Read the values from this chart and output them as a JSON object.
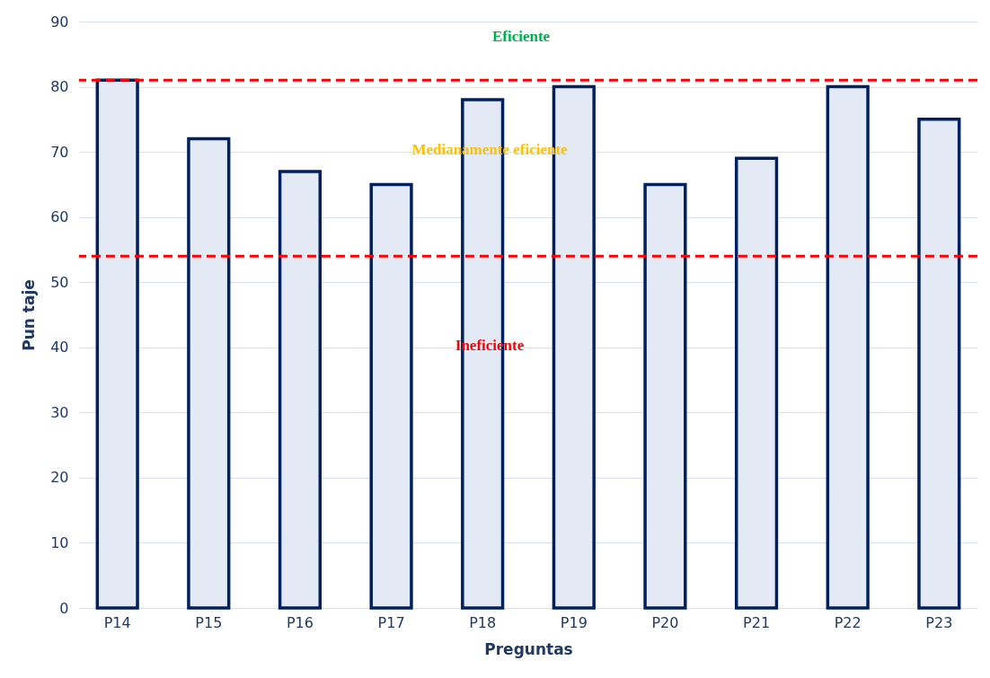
{
  "chart_data": {
    "type": "bar",
    "xlabel": "Preguntas",
    "ylabel": "Pun taje",
    "categories": [
      "P14",
      "P15",
      "P16",
      "P17",
      "P18",
      "P19",
      "P20",
      "P21",
      "P22",
      "P23"
    ],
    "series": [
      {
        "color": "#002060",
        "values": [
          81,
          72,
          67,
          65,
          78,
          80,
          65,
          69,
          80,
          75
        ]
      }
    ],
    "ylim": [
      0,
      90
    ],
    "yticks": [
      0,
      10,
      20,
      30,
      40,
      50,
      60,
      70,
      80,
      90
    ],
    "grid": "y",
    "ref_lines": [
      {
        "axis": "y",
        "value": 81,
        "color": "#ff0000",
        "line_style": "dashed"
      },
      {
        "axis": "y",
        "value": 54,
        "color": "#ff0000",
        "line_style": "dashed"
      }
    ],
    "annotations": [
      "Eficiente",
      "Medianamente eficiente",
      "Ineficiente"
    ]
  }
}
